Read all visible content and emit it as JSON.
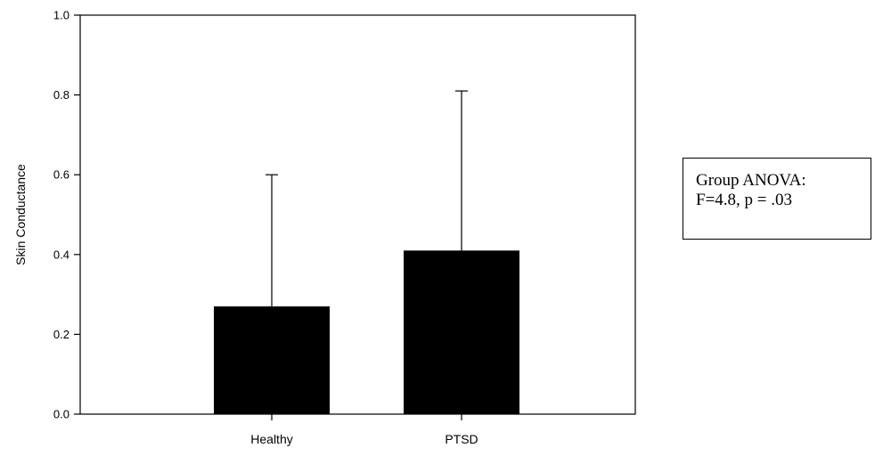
{
  "chart_data": {
    "type": "bar",
    "categories": [
      "Healthy",
      "PTSD"
    ],
    "values": [
      0.27,
      0.41
    ],
    "error_bars_upper": [
      0.6,
      0.81
    ],
    "ylabel": "Skin Conductance",
    "xlabel": "",
    "ylim": [
      0,
      1.0
    ],
    "yticks": [
      "0.0",
      "0.2",
      "0.4",
      "0.6",
      "0.8",
      "1.0"
    ],
    "bar_color": "#000000",
    "grid": false
  },
  "annotation": {
    "line1": "Group ANOVA:",
    "line2": "F=4.8, p = .03"
  }
}
